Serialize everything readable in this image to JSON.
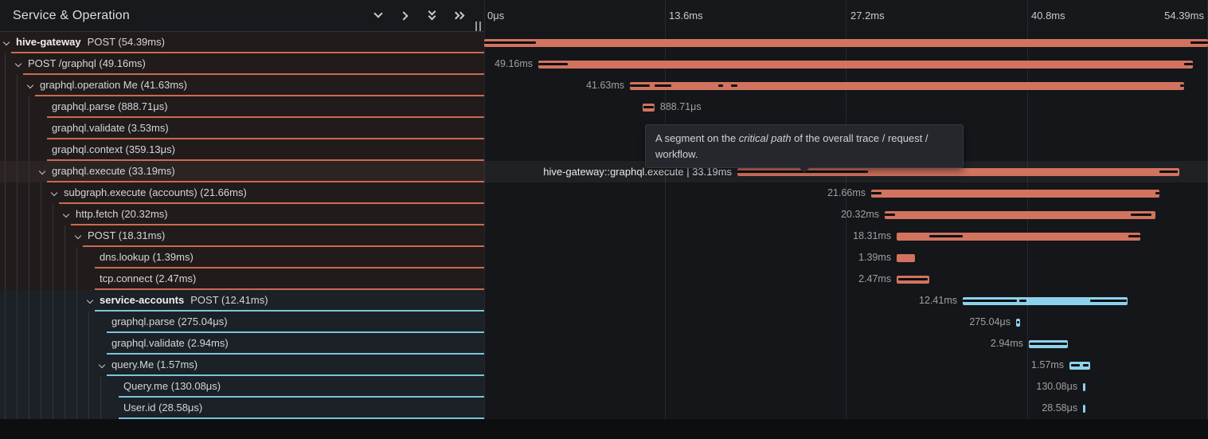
{
  "header": {
    "title": "Service & Operation",
    "icons": [
      "chevron-down",
      "chevron-right",
      "collapse-all",
      "expand-all"
    ]
  },
  "timeline": {
    "total_ms": 54.39,
    "ticks": [
      "0μs",
      "13.6ms",
      "27.2ms",
      "40.8ms",
      "54.39ms"
    ]
  },
  "tooltip": {
    "before": "A segment on the ",
    "emphasis": "critical path",
    "after": " of the overall trace / request / workflow."
  },
  "colors": {
    "salmon": "#d2735f",
    "salmon_border": "#cb6a52",
    "blue": "#8dd2ec",
    "blue_border": "#7cc3dd",
    "critical": "#0d0f12",
    "row_bg_salmon": "#211c1b",
    "row_bg_blue": "#1b2126",
    "hover_bg": "#2b2423"
  },
  "spans": [
    {
      "service": "hive-gateway",
      "name": "POST (54.39ms)",
      "depth": 0,
      "expandable": true,
      "color": "salmon",
      "start_ms": 0,
      "duration_ms": 54.39,
      "time_label": "",
      "label_side": "none",
      "critical_ms": [
        [
          0,
          3.89
        ],
        [
          53.07,
          54.39
        ]
      ],
      "hovered": false
    },
    {
      "service": "",
      "name": "POST /graphql (49.16ms)",
      "depth": 1,
      "expandable": true,
      "color": "salmon",
      "start_ms": 4.07,
      "duration_ms": 49.16,
      "time_label": "49.16ms",
      "label_side": "left",
      "critical_ms": [
        [
          4.07,
          6.28
        ],
        [
          52.62,
          53.23
        ]
      ],
      "hovered": false
    },
    {
      "service": "",
      "name": "graphql.operation Me (41.63ms)",
      "depth": 2,
      "expandable": true,
      "color": "salmon",
      "start_ms": 10.95,
      "duration_ms": 41.63,
      "time_label": "41.63ms",
      "label_side": "left",
      "critical_ms": [
        [
          10.95,
          12.45
        ],
        [
          12.81,
          14.06
        ],
        [
          17.62,
          17.95
        ],
        [
          18.55,
          19.05
        ],
        [
          52.3,
          52.58
        ]
      ],
      "hovered": false
    },
    {
      "service": "",
      "name": "graphql.parse (888.71μs)",
      "depth": 3,
      "expandable": false,
      "color": "salmon",
      "start_ms": 11.91,
      "duration_ms": 0.88871,
      "time_label": "888.71μs",
      "label_side": "right",
      "critical_ms": [
        [
          11.99,
          12.72
        ]
      ],
      "hovered": false
    },
    {
      "service": "",
      "name": "graphql.validate (3.53ms)",
      "depth": 3,
      "expandable": false,
      "color": "salmon",
      "start_ms": 14.06,
      "duration_ms": 3.53,
      "time_label": "3.53ms",
      "label_side": "right",
      "critical_ms": [
        [
          14.2,
          17.45
        ]
      ],
      "hovered": false
    },
    {
      "service": "",
      "name": "graphql.context (359.13μs)",
      "depth": 3,
      "expandable": false,
      "color": "salmon",
      "start_ms": 17.65,
      "duration_ms": 0.35913,
      "time_label": "359.13μs",
      "label_side": "right",
      "critical_ms": [],
      "hovered": false
    },
    {
      "service": "",
      "name": "graphql.execute (33.19ms)",
      "depth": 3,
      "expandable": true,
      "color": "salmon",
      "start_ms": 19.03,
      "duration_ms": 33.19,
      "time_label": "hive-gateway::graphql.execute | 33.19ms",
      "label_side": "left",
      "critical_ms": [
        [
          19.03,
          28.84
        ],
        [
          50.73,
          52.1
        ]
      ],
      "hovered": true
    },
    {
      "service": "",
      "name": "subgraph.execute (accounts) (21.66ms)",
      "depth": 4,
      "expandable": true,
      "color": "salmon",
      "start_ms": 29.08,
      "duration_ms": 21.66,
      "time_label": "21.66ms",
      "label_side": "left",
      "critical_ms": [
        [
          29.08,
          29.88
        ],
        [
          50.45,
          50.74
        ]
      ],
      "hovered": false
    },
    {
      "service": "",
      "name": "http.fetch (20.32ms)",
      "depth": 5,
      "expandable": true,
      "color": "salmon",
      "start_ms": 30.1,
      "duration_ms": 20.32,
      "time_label": "20.32ms",
      "label_side": "left",
      "critical_ms": [
        [
          30.1,
          30.9
        ],
        [
          48.6,
          50.15
        ]
      ],
      "hovered": false
    },
    {
      "service": "",
      "name": "POST (18.31ms)",
      "depth": 6,
      "expandable": true,
      "color": "salmon",
      "start_ms": 31.0,
      "duration_ms": 18.31,
      "time_label": "18.31ms",
      "label_side": "left",
      "critical_ms": [
        [
          33.45,
          35.96
        ],
        [
          48.4,
          49.3
        ]
      ],
      "hovered": false
    },
    {
      "service": "",
      "name": "dns.lookup (1.39ms)",
      "depth": 7,
      "expandable": false,
      "color": "salmon",
      "start_ms": 31.0,
      "duration_ms": 1.39,
      "time_label": "1.39ms",
      "label_side": "left",
      "critical_ms": [],
      "hovered": false
    },
    {
      "service": "",
      "name": "tcp.connect (2.47ms)",
      "depth": 7,
      "expandable": false,
      "color": "salmon",
      "start_ms": 31.0,
      "duration_ms": 2.47,
      "time_label": "2.47ms",
      "label_side": "left",
      "critical_ms": [
        [
          31.1,
          33.35
        ]
      ],
      "hovered": false
    },
    {
      "service": "service-accounts",
      "name": "POST (12.41ms)",
      "depth": 7,
      "expandable": true,
      "color": "blue",
      "start_ms": 35.96,
      "duration_ms": 12.41,
      "time_label": "12.41ms",
      "label_side": "left",
      "critical_ms": [
        [
          35.96,
          40.03
        ],
        [
          40.21,
          40.75
        ],
        [
          45.53,
          48.3
        ]
      ],
      "hovered": false
    },
    {
      "service": "",
      "name": "graphql.parse (275.04μs)",
      "depth": 8,
      "expandable": false,
      "color": "blue",
      "start_ms": 39.97,
      "duration_ms": 0.27504,
      "time_label": "275.04μs",
      "label_side": "left",
      "critical_ms": [
        [
          40.0,
          40.18
        ]
      ],
      "hovered": false
    },
    {
      "service": "",
      "name": "graphql.validate (2.94ms)",
      "depth": 8,
      "expandable": false,
      "color": "blue",
      "start_ms": 40.92,
      "duration_ms": 2.94,
      "time_label": "2.94ms",
      "label_side": "left",
      "critical_ms": [
        [
          41.0,
          43.8
        ]
      ],
      "hovered": false
    },
    {
      "service": "",
      "name": "query.Me (1.57ms)",
      "depth": 8,
      "expandable": true,
      "color": "blue",
      "start_ms": 43.98,
      "duration_ms": 1.57,
      "time_label": "1.57ms",
      "label_side": "left",
      "critical_ms": [
        [
          44.08,
          44.78
        ],
        [
          45.02,
          45.4
        ]
      ],
      "hovered": false
    },
    {
      "service": "",
      "name": "Query.me (130.08μs)",
      "depth": 9,
      "expandable": false,
      "color": "blue",
      "start_ms": 45.0,
      "duration_ms": 0.13008,
      "time_label": "130.08μs",
      "label_side": "left",
      "critical_ms": [],
      "hovered": false
    },
    {
      "service": "",
      "name": "User.id (28.58μs)",
      "depth": 9,
      "expandable": false,
      "color": "blue",
      "start_ms": 45.0,
      "duration_ms": 0.02858,
      "time_label": "28.58μs",
      "label_side": "left",
      "critical_ms": [],
      "hovered": false
    }
  ]
}
